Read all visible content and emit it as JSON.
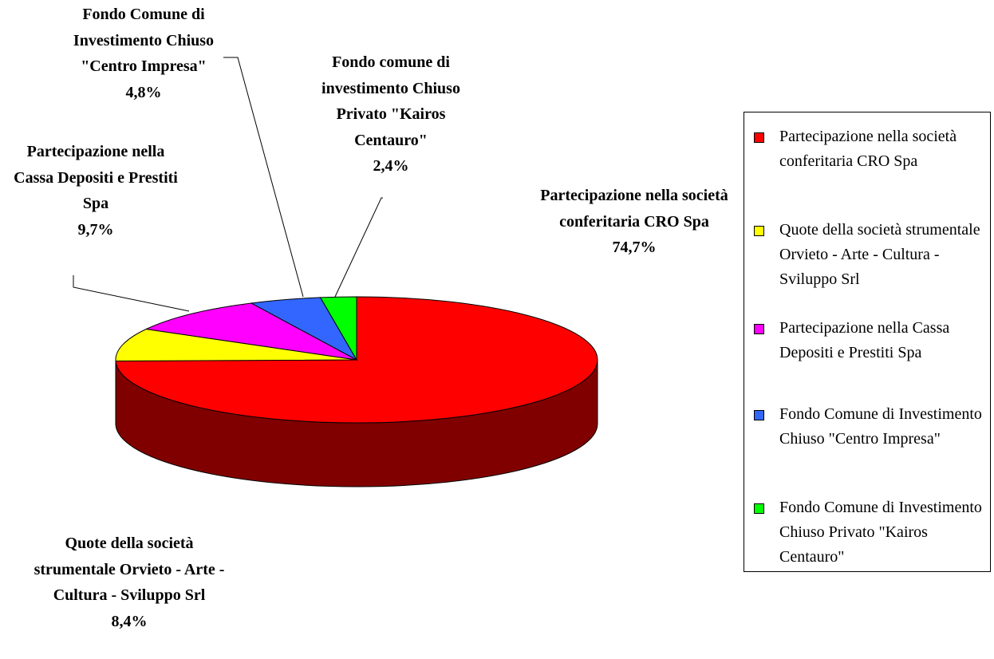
{
  "chart_data": {
    "type": "pie3d",
    "series": [
      {
        "name": "Partecipazione nella società conferitaria CRO Spa",
        "color": "#ff0000",
        "side_color": "#800000"
      },
      {
        "name": "Quote della società strumentale Orvieto - Arte - Cultura - Sviluppo Srl",
        "color": "#ffff00",
        "side_color": "#808000"
      },
      {
        "name": "Partecipazione nella Cassa Depositi e Prestiti Spa",
        "color": "#ff00ff",
        "side_color": "#800080"
      },
      {
        "name": "Fondo Comune di Investimento Chiuso \"Centro Impresa\"",
        "color": "#3366ff",
        "side_color": "#1a3380"
      },
      {
        "name": "Fondo Comune di Investimento Chiuso Privato \"Kairos Centauro\"",
        "color": "#00ff00",
        "side_color": "#008000"
      }
    ],
    "data_labels": [
      "Partecipazione nella società conferitaria CRO Spa",
      "Quote della società strumentale Orvieto - Arte - Cultura - Sviluppo Srl",
      "Partecipazione nella Cassa Depositi e Prestiti Spa",
      "Fondo Comune di Investimento Chiuso \"Centro Impresa\"",
      "Fondo comune di investimento Chiuso Privato \"Kairos Centauro\""
    ],
    "values": [
      74.7,
      8.4,
      9.7,
      4.8,
      2.4
    ],
    "value_labels": [
      "74,7%",
      "8,4%",
      "9,7%",
      "4,8%",
      "2,4%"
    ],
    "legend": "right"
  }
}
